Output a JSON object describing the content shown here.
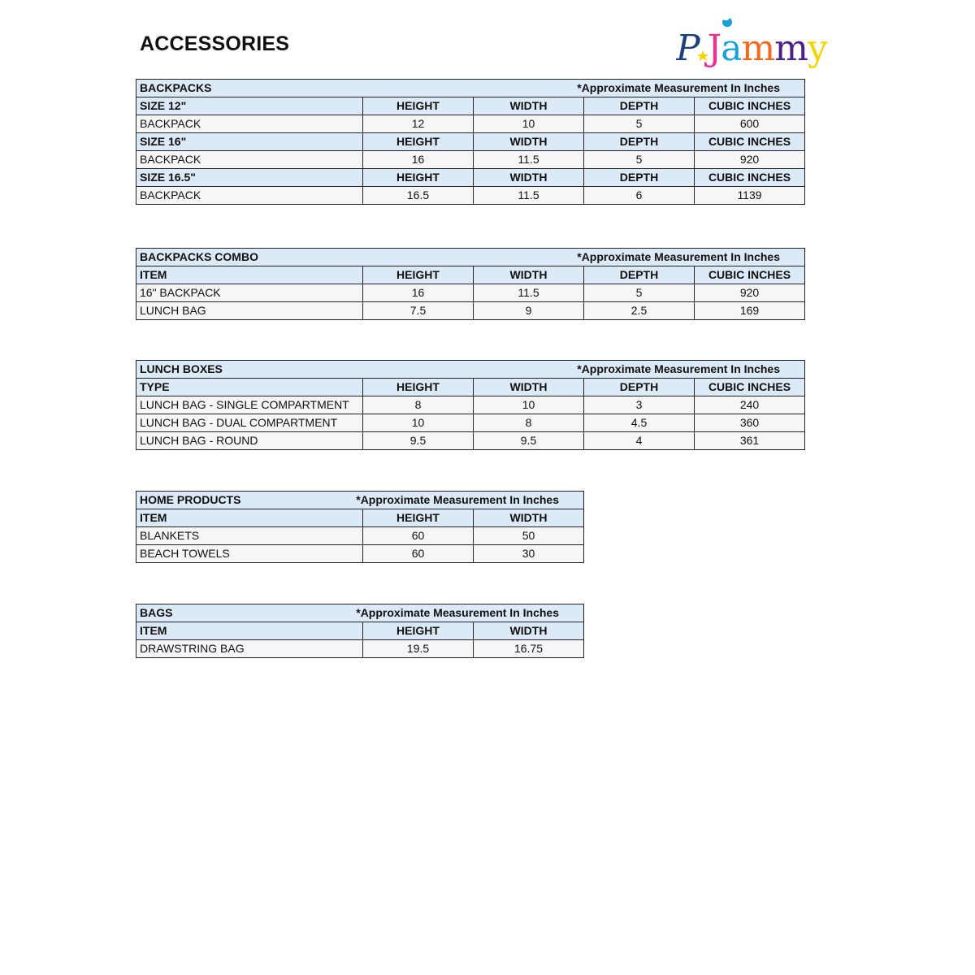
{
  "page_title": "ACCESSORIES",
  "logo": {
    "text": "PJammy",
    "colors": [
      "#1d3f7a",
      "#e8328c",
      "#1aa0d8",
      "#ef6a1e",
      "#4a1f86",
      "#f2d400"
    ]
  },
  "colors": {
    "header_bg": "#dce9f7",
    "row_bg": "#f6f6f6",
    "border": "#222222"
  },
  "tables": [
    {
      "title": "BACKPACKS",
      "note": "*Approximate Measurement In Inches",
      "sections": [
        {
          "header": [
            "SIZE 12\"",
            "HEIGHT",
            "WIDTH",
            "DEPTH",
            "CUBIC INCHES"
          ],
          "rows": [
            [
              "BACKPACK",
              "12",
              "10",
              "5",
              "600"
            ]
          ]
        },
        {
          "header": [
            "SIZE 16\"",
            "HEIGHT",
            "WIDTH",
            "DEPTH",
            "CUBIC INCHES"
          ],
          "rows": [
            [
              "BACKPACK",
              "16",
              "11.5",
              "5",
              "920"
            ]
          ]
        },
        {
          "header": [
            "SIZE 16.5\"",
            "HEIGHT",
            "WIDTH",
            "DEPTH",
            "CUBIC INCHES"
          ],
          "rows": [
            [
              "BACKPACK",
              "16.5",
              "11.5",
              "6",
              "1139"
            ]
          ]
        }
      ]
    },
    {
      "title": "BACKPACKS COMBO",
      "note": "*Approximate Measurement In Inches",
      "sections": [
        {
          "header": [
            "ITEM",
            "HEIGHT",
            "WIDTH",
            "DEPTH",
            "CUBIC INCHES"
          ],
          "rows": [
            [
              "16\" BACKPACK",
              "16",
              "11.5",
              "5",
              "920"
            ],
            [
              "LUNCH BAG",
              "7.5",
              "9",
              "2.5",
              "169"
            ]
          ]
        }
      ]
    },
    {
      "title": "LUNCH BOXES",
      "note": "*Approximate Measurement In Inches",
      "sections": [
        {
          "header": [
            "TYPE",
            "HEIGHT",
            "WIDTH",
            "DEPTH",
            "CUBIC INCHES"
          ],
          "rows": [
            [
              "LUNCH BAG - SINGLE COMPARTMENT",
              "8",
              "10",
              "3",
              "240"
            ],
            [
              "LUNCH BAG - DUAL COMPARTMENT",
              "10",
              "8",
              "4.5",
              "360"
            ],
            [
              "LUNCH BAG - ROUND",
              "9.5",
              "9.5",
              "4",
              "361"
            ]
          ]
        }
      ]
    },
    {
      "title": "HOME PRODUCTS",
      "note": "*Approximate Measurement In Inches",
      "sections": [
        {
          "header": [
            "ITEM",
            "HEIGHT",
            "WIDTH"
          ],
          "rows": [
            [
              "BLANKETS",
              "60",
              "50"
            ],
            [
              "BEACH TOWELS",
              "60",
              "30"
            ]
          ]
        }
      ]
    },
    {
      "title": "BAGS",
      "note": "*Approximate Measurement In Inches",
      "sections": [
        {
          "header": [
            "ITEM",
            "HEIGHT",
            "WIDTH"
          ],
          "rows": [
            [
              "DRAWSTRING BAG",
              "19.5",
              "16.75"
            ]
          ]
        }
      ]
    }
  ]
}
